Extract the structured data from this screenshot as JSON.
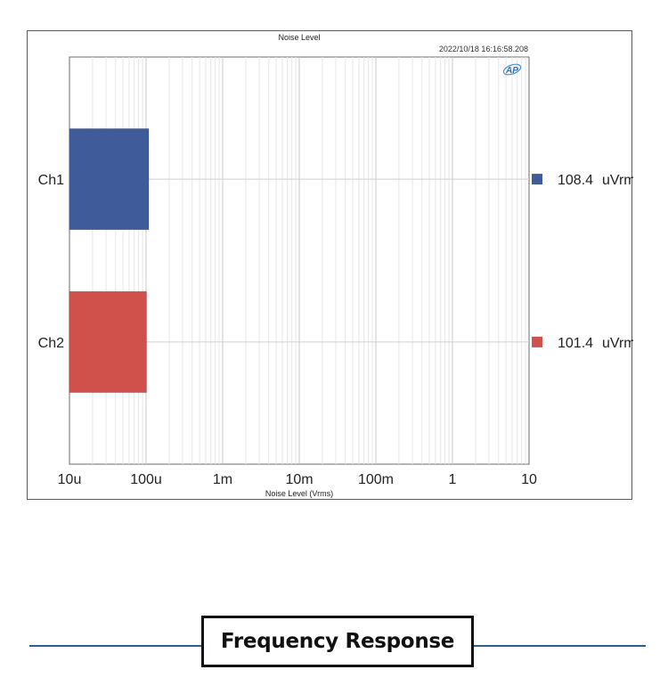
{
  "chart_data": {
    "type": "bar",
    "orientation": "horizontal",
    "title": "Noise Level",
    "timestamp": "2022/10/18 16:16:58.208",
    "logo_text": "AP",
    "xlabel": "Noise Level (Vrms)",
    "xscale": "log",
    "xlim": [
      1e-05,
      10
    ],
    "xticks": [
      {
        "value": 1e-05,
        "label": "10u"
      },
      {
        "value": 0.0001,
        "label": "100u"
      },
      {
        "value": 0.001,
        "label": "1m"
      },
      {
        "value": 0.01,
        "label": "10m"
      },
      {
        "value": 0.1,
        "label": "100m"
      },
      {
        "value": 1,
        "label": "1"
      },
      {
        "value": 10,
        "label": "10"
      }
    ],
    "grid": true,
    "categories": [
      "Ch1",
      "Ch2"
    ],
    "values": [
      0.0001084,
      0.0001014
    ],
    "colors": [
      "#3f5b9a",
      "#d0504c"
    ],
    "value_labels": [
      {
        "number": "108.4",
        "unit": "uVrms"
      },
      {
        "number": "101.4",
        "unit": "uVrms"
      }
    ]
  },
  "section": {
    "title": "Frequency Response"
  }
}
